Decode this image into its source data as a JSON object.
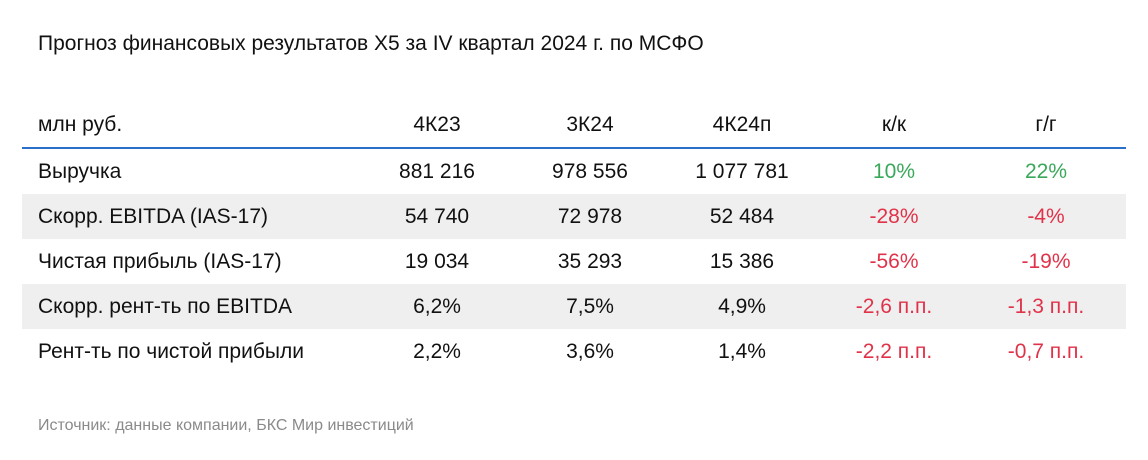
{
  "title": "Прогноз финансовых результатов X5 за IV квартал 2024 г. по МСФО",
  "table": {
    "headers": [
      "млн руб.",
      "4К23",
      "3К24",
      "4К24п",
      "к/к",
      "г/г"
    ],
    "rows": [
      {
        "label": "Выручка",
        "v4k23": "881 216",
        "v3k24": "978 556",
        "v4k24p": "1 077 781",
        "qq": "10%",
        "yy": "22%"
      },
      {
        "label": "Скорр. EBITDA (IAS-17)",
        "v4k23": "54 740",
        "v3k24": "72 978",
        "v4k24p": "52 484",
        "qq": "-28%",
        "yy": "-4%"
      },
      {
        "label": "Чистая прибыль (IAS-17)",
        "v4k23": "19 034",
        "v3k24": "35 293",
        "v4k24p": "15 386",
        "qq": "-56%",
        "yy": "-19%"
      },
      {
        "label": "Скорр. рент-ть по EBITDA",
        "v4k23": "6,2%",
        "v3k24": "7,5%",
        "v4k24p": "4,9%",
        "qq": "-2,6 п.п.",
        "yy": "-1,3 п.п."
      },
      {
        "label": "Рент-ть по чистой прибыли",
        "v4k23": "2,2%",
        "v3k24": "3,6%",
        "v4k24p": "1,4%",
        "qq": "-2,2 п.п.",
        "yy": "-0,7 п.п."
      }
    ]
  },
  "colors": {
    "positive": "#3aa85a",
    "negative": "#e0334a",
    "header_rule": "#2a6fc9",
    "row_shade": "#efefef"
  },
  "source": "Источник: данные компании, БКС Мир инвестиций"
}
